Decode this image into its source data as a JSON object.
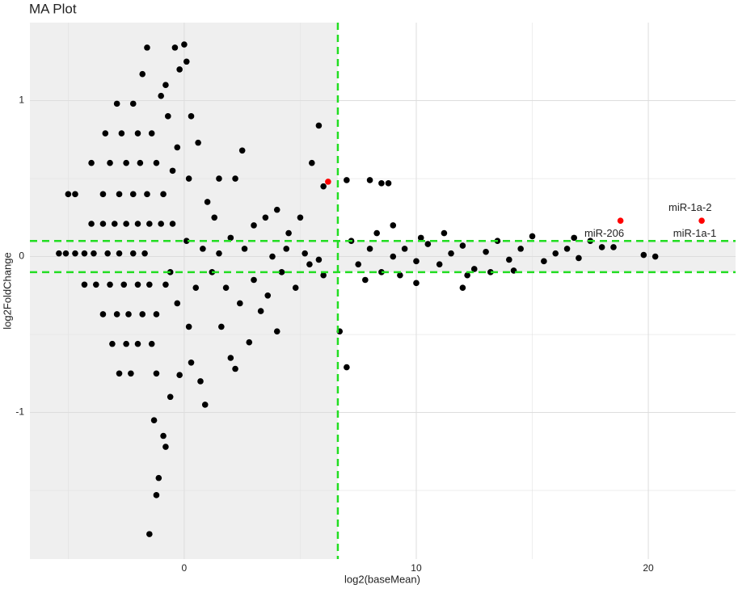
{
  "chart_data": {
    "type": "scatter",
    "title": "MA Plot",
    "xlabel": "log2(baseMean)",
    "ylabel": "log2FoldChange",
    "xlim": [
      -6.65,
      23.76
    ],
    "ylim": [
      -1.94,
      1.5
    ],
    "xticks": [
      0,
      10,
      20
    ],
    "yticks": [
      -1,
      0,
      1
    ],
    "minor_xticks": [
      -5,
      5,
      15
    ],
    "minor_yticks": [
      -1.5,
      -0.5,
      0.5
    ],
    "grid": true,
    "vlines": [
      6.62
    ],
    "hlines": [
      0.1,
      -0.1
    ],
    "line_color": "#22dd22",
    "shade_color": "#efefef",
    "series": [
      {
        "color": "#000000",
        "x": [
          -5.4,
          -5.1,
          -4.7,
          -4.3,
          -3.9,
          -3.3,
          -2.8,
          -2.2,
          -1.7,
          -4.0,
          -3.5,
          -3.0,
          -2.5,
          -2.0,
          -1.5,
          -1.0,
          -0.5,
          -5.0,
          -4.7,
          -3.5,
          -2.8,
          -2.2,
          -1.6,
          -0.9,
          -4.0,
          -3.2,
          -2.5,
          -1.9,
          -1.2,
          -3.4,
          -2.7,
          -2.0,
          -1.4,
          -2.9,
          -2.2,
          -4.3,
          -3.8,
          -3.2,
          -2.6,
          -2.0,
          -1.5,
          -0.8,
          -3.5,
          -2.9,
          -2.4,
          -1.8,
          -1.2,
          -3.1,
          -2.5,
          -2.0,
          -1.4,
          -2.8,
          -2.3,
          -1.2,
          -1.6,
          -1.8,
          -0.4,
          0,
          -0.2,
          0.1,
          -0.8,
          -1.0,
          -0.7,
          0.3,
          -0.3,
          0.6,
          -0.5,
          0.2,
          -1.5,
          -1.2,
          -1.1,
          -0.8,
          -1.3,
          -0.9,
          -0.6,
          -0.2,
          0.3,
          0.9,
          0.7,
          0.2,
          -0.3,
          0.5,
          0.1,
          -0.6,
          1.0,
          1.5,
          2.2,
          2.5,
          1.3,
          2.0,
          3.0,
          3.5,
          4.0,
          4.5,
          5.0,
          5.5,
          5.8,
          6.0,
          1.2,
          1.8,
          2.4,
          3.0,
          3.6,
          4.2,
          4.8,
          5.4,
          6.0,
          2.0,
          2.2,
          2.8,
          1.6,
          4.0,
          3.3,
          0.8,
          1.5,
          2.6,
          3.8,
          4.4,
          5.2,
          5.8,
          6.7,
          7.0,
          7.0,
          8.0,
          8.5,
          8.8,
          9.0,
          7.2,
          7.5,
          8.0,
          8.5,
          9.0,
          9.5,
          10.0,
          10.5,
          11.0,
          11.5,
          12.0,
          12.5,
          13.0,
          13.5,
          14.0,
          14.5,
          15.0,
          15.5,
          16.0,
          16.5,
          17.0,
          17.5,
          18.0,
          18.5,
          19.8,
          20.3,
          7.8,
          8.3,
          9.3,
          10.2,
          11.2,
          12.2,
          13.2,
          14.2,
          12.0,
          10.0,
          16.8
        ],
        "y": [
          0.02,
          0.02,
          0.02,
          0.02,
          0.02,
          0.02,
          0.02,
          0.02,
          0.02,
          0.21,
          0.21,
          0.21,
          0.21,
          0.21,
          0.21,
          0.21,
          0.21,
          0.4,
          0.4,
          0.4,
          0.4,
          0.4,
          0.4,
          0.4,
          0.6,
          0.6,
          0.6,
          0.6,
          0.6,
          0.79,
          0.79,
          0.79,
          0.79,
          0.98,
          0.98,
          -0.18,
          -0.18,
          -0.18,
          -0.18,
          -0.18,
          -0.18,
          -0.18,
          -0.37,
          -0.37,
          -0.37,
          -0.37,
          -0.37,
          -0.56,
          -0.56,
          -0.56,
          -0.56,
          -0.75,
          -0.75,
          -0.75,
          1.34,
          1.17,
          1.34,
          1.36,
          1.2,
          1.25,
          1.1,
          1.03,
          0.9,
          0.9,
          0.7,
          0.73,
          0.55,
          0.5,
          -1.78,
          -1.53,
          -1.42,
          -1.22,
          -1.05,
          -1.15,
          -0.9,
          -0.76,
          -0.68,
          -0.95,
          -0.8,
          -0.45,
          -0.3,
          -0.2,
          0.1,
          -0.1,
          0.35,
          0.5,
          0.5,
          0.68,
          0.25,
          0.12,
          0.2,
          0.25,
          0.3,
          0.15,
          0.25,
          0.6,
          0.84,
          0.45,
          -0.1,
          -0.2,
          -0.3,
          -0.15,
          -0.25,
          -0.1,
          -0.2,
          -0.05,
          -0.12,
          -0.65,
          -0.72,
          -0.55,
          -0.45,
          -0.48,
          -0.35,
          0.05,
          0.02,
          0.05,
          0.0,
          0.05,
          0.02,
          -0.02,
          -0.48,
          -0.71,
          0.49,
          0.49,
          0.47,
          0.47,
          0.2,
          0.1,
          -0.05,
          0.05,
          -0.1,
          0.0,
          0.05,
          -0.03,
          0.08,
          -0.05,
          0.02,
          0.07,
          -0.08,
          0.03,
          0.1,
          -0.02,
          0.05,
          0.13,
          -0.03,
          0.02,
          0.05,
          -0.01,
          0.1,
          0.06,
          0.06,
          0.01,
          0.0,
          -0.15,
          0.15,
          -0.12,
          0.12,
          0.15,
          -0.12,
          -0.1,
          -0.09,
          -0.2,
          -0.17,
          0.12
        ]
      },
      {
        "color": "#ff0000",
        "x": [
          6.2,
          18.8,
          22.3
        ],
        "y": [
          0.48,
          0.23,
          0.23
        ]
      }
    ],
    "annotations": [
      {
        "text": "miR-206",
        "x": 18.1,
        "y": 0.145
      },
      {
        "text": "miR-1a-2",
        "x": 21.8,
        "y": 0.31
      },
      {
        "text": "miR-1a-1",
        "x": 22.0,
        "y": 0.145
      }
    ]
  }
}
